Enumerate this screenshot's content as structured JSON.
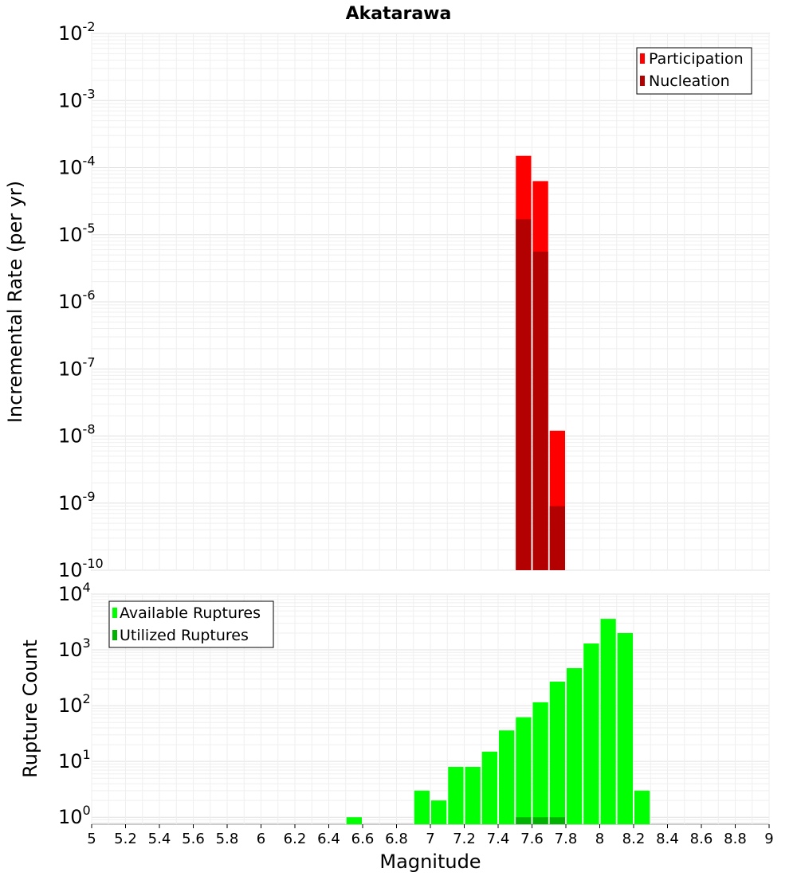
{
  "title": "Akatarawa",
  "chart_data": [
    {
      "type": "bar",
      "ylabel": "Incremental Rate (per yr)",
      "yscale": "log",
      "ylim": [
        1e-10,
        0.01
      ],
      "ytick_exponents": [
        -10,
        -9,
        -8,
        -7,
        -6,
        -5,
        -4,
        -3,
        -2
      ],
      "xlim": [
        5,
        9
      ],
      "bin_width": 0.1,
      "legend_position": "top-right",
      "grid": true,
      "series": [
        {
          "name": "Participation",
          "color": "#ff0000",
          "x": [
            7.55,
            7.65,
            7.75
          ],
          "values": [
            0.00015,
            6.3e-05,
            1.2e-08
          ]
        },
        {
          "name": "Nucleation",
          "color": "#b30000",
          "x": [
            7.55,
            7.65,
            7.75
          ],
          "values": [
            1.7e-05,
            5.6e-06,
            9e-10
          ]
        }
      ]
    },
    {
      "type": "bar",
      "xlabel": "Magnitude",
      "ylabel": "Rupture Count",
      "yscale": "log",
      "ylim": [
        0.75,
        10000
      ],
      "ytick_exponents": [
        0,
        1,
        2,
        3,
        4
      ],
      "xlim": [
        5,
        9
      ],
      "xticks": [
        "5",
        "5.2",
        "5.4",
        "5.6",
        "5.8",
        "6",
        "6.2",
        "6.4",
        "6.6",
        "6.8",
        "7",
        "7.2",
        "7.4",
        "7.6",
        "7.8",
        "8",
        "8.2",
        "8.4",
        "8.6",
        "8.8",
        "9"
      ],
      "bin_width": 0.1,
      "legend_position": "top-left",
      "grid": true,
      "series": [
        {
          "name": "Available Ruptures",
          "color": "#00ff00",
          "x": [
            6.55,
            6.95,
            7.05,
            7.15,
            7.25,
            7.35,
            7.45,
            7.55,
            7.65,
            7.75,
            7.85,
            7.95,
            8.05,
            8.15,
            8.25
          ],
          "values": [
            1,
            3,
            2,
            8,
            8,
            15,
            36,
            62,
            115,
            270,
            470,
            1300,
            3600,
            2000,
            3
          ]
        },
        {
          "name": "Utilized Ruptures",
          "color": "#00b300",
          "x": [
            7.55,
            7.65,
            7.75
          ],
          "values": [
            1,
            1,
            1
          ]
        }
      ]
    }
  ]
}
